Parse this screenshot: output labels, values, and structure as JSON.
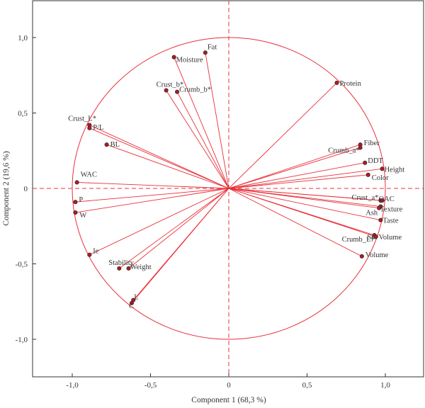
{
  "chart_data": {
    "type": "scatter",
    "subtype": "pca-correlation-circle",
    "title": "",
    "xlabel": "Component 1 (68,3 %)",
    "ylabel": "Component 2 (19,6 %)",
    "xlim": [
      -1.25,
      1.25
    ],
    "ylim": [
      -1.25,
      1.25
    ],
    "x_ticks": [
      {
        "value": -1.0,
        "label": "-1,0"
      },
      {
        "value": -0.5,
        "label": "-0,5"
      },
      {
        "value": 0.0,
        "label": "0"
      },
      {
        "value": 0.5,
        "label": "0,5"
      },
      {
        "value": 1.0,
        "label": "1,0"
      }
    ],
    "y_ticks": [
      {
        "value": 1.0,
        "label": "1,0"
      },
      {
        "value": 0.5,
        "label": "0,5"
      },
      {
        "value": 0.0,
        "label": "0"
      },
      {
        "value": -0.5,
        "label": "-0,5"
      },
      {
        "value": -1.0,
        "label": "-1,0"
      }
    ],
    "circle_radius": 1.0,
    "grid": false,
    "colors": {
      "accent": "#e8303a",
      "marker": "#c0141e",
      "axis": "#333333"
    },
    "points": [
      {
        "label": "Fat",
        "x": -0.15,
        "y": 0.9
      },
      {
        "label": "Moisture",
        "x": -0.35,
        "y": 0.87
      },
      {
        "label": "Crust_b*",
        "x": -0.4,
        "y": 0.65
      },
      {
        "label": "Crumb_b*",
        "x": -0.33,
        "y": 0.64
      },
      {
        "label": "Crust_L*",
        "x": -0.89,
        "y": 0.42
      },
      {
        "label": "P/L",
        "x": -0.89,
        "y": 0.4
      },
      {
        "label": "BL",
        "x": -0.78,
        "y": 0.29
      },
      {
        "label": "WAC",
        "x": -0.97,
        "y": 0.04
      },
      {
        "label": "P",
        "x": -0.98,
        "y": -0.09
      },
      {
        "label": "W",
        "x": -0.98,
        "y": -0.16
      },
      {
        "label": "Ie",
        "x": -0.89,
        "y": -0.44
      },
      {
        "label": "Stability",
        "x": -0.7,
        "y": -0.53
      },
      {
        "label": "Weight",
        "x": -0.64,
        "y": -0.53
      },
      {
        "label": "C",
        "x": -0.62,
        "y": -0.76
      },
      {
        "label": "L",
        "x": -0.61,
        "y": -0.74
      },
      {
        "label": "Protein",
        "x": 0.69,
        "y": 0.7
      },
      {
        "label": "Fiber",
        "x": 0.84,
        "y": 0.29
      },
      {
        "label": "Crumb_a*",
        "x": 0.84,
        "y": 0.27
      },
      {
        "label": "DDT",
        "x": 0.87,
        "y": 0.17
      },
      {
        "label": "Height",
        "x": 0.98,
        "y": 0.13
      },
      {
        "label": "Color",
        "x": 0.89,
        "y": 0.09
      },
      {
        "label": "Crust_a*",
        "x": 0.97,
        "y": -0.08
      },
      {
        "label": "OAC",
        "x": 0.98,
        "y": -0.08
      },
      {
        "label": "Texture",
        "x": 0.97,
        "y": -0.12
      },
      {
        "label": "Ash",
        "x": 0.96,
        "y": -0.13
      },
      {
        "label": "Taste",
        "x": 0.97,
        "y": -0.21
      },
      {
        "label": "Sp. Volume",
        "x": 0.93,
        "y": -0.31
      },
      {
        "label": "Crumb_L*",
        "x": 0.94,
        "y": -0.32
      },
      {
        "label": "Volume",
        "x": 0.85,
        "y": -0.45
      }
    ]
  }
}
